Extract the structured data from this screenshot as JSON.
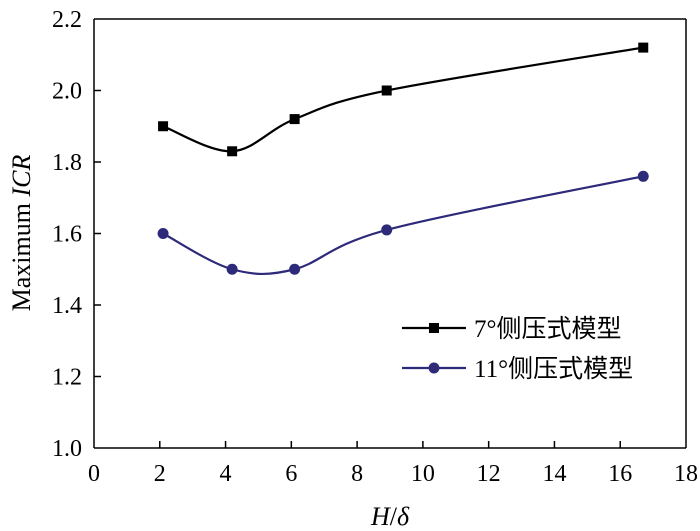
{
  "chart_data": {
    "type": "line",
    "xlabel": "H/δ",
    "ylabel": "Maximum ICR",
    "xlabel_parts": {
      "italic_1": "H",
      "normal": "/",
      "italic_2": "δ"
    },
    "ylabel_parts": {
      "normal": "Maximum ",
      "italic": "ICR"
    },
    "xlim": [
      0,
      18
    ],
    "ylim": [
      1.0,
      2.2
    ],
    "xticks": [
      0,
      2,
      4,
      6,
      8,
      10,
      12,
      14,
      16,
      18
    ],
    "yticks": [
      1.0,
      1.2,
      1.4,
      1.6,
      1.8,
      2.0,
      2.2
    ],
    "xtick_labels": [
      "0",
      "2",
      "4",
      "6",
      "8",
      "10",
      "12",
      "14",
      "16",
      "18"
    ],
    "ytick_labels": [
      "1.0",
      "1.2",
      "1.4",
      "1.6",
      "1.8",
      "2.0",
      "2.2"
    ],
    "grid": false,
    "legend_position": "center-right",
    "series": [
      {
        "name": "7°侧压式模型",
        "marker": "square",
        "color": "#000000",
        "x": [
          2.1,
          4.2,
          6.1,
          8.9,
          16.7
        ],
        "y": [
          1.9,
          1.83,
          1.92,
          2.0,
          2.12
        ]
      },
      {
        "name": "11°侧压式模型",
        "marker": "circle",
        "color": "#2e2a7a",
        "x": [
          2.1,
          4.2,
          6.1,
          8.9,
          16.7
        ],
        "y": [
          1.6,
          1.5,
          1.5,
          1.61,
          1.76
        ]
      }
    ]
  }
}
